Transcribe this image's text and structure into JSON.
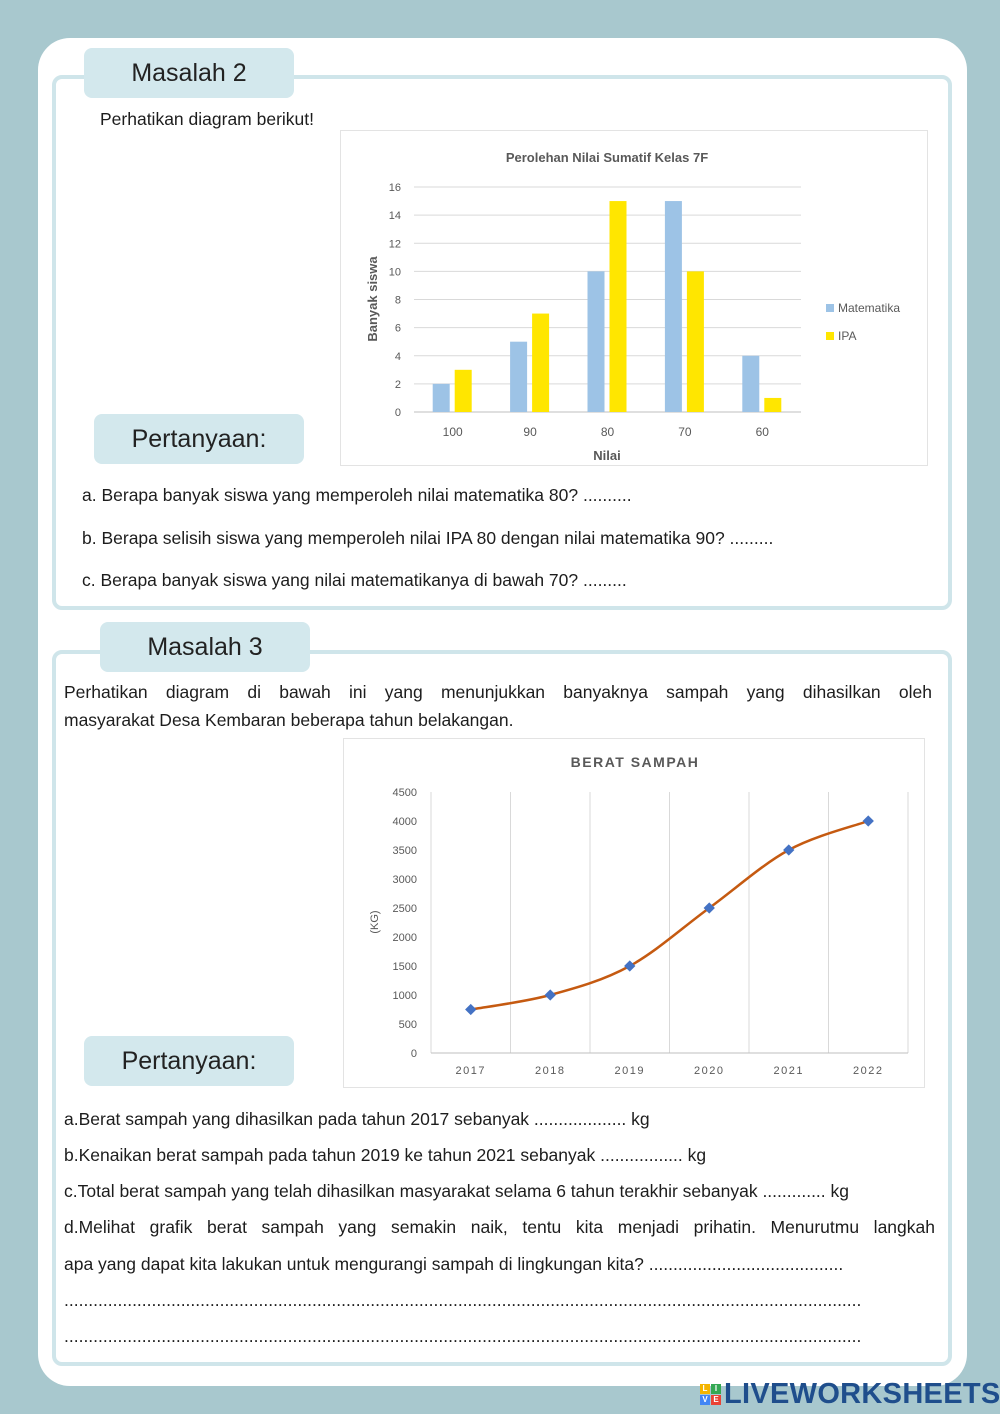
{
  "masalah2": {
    "title": "Masalah 2",
    "intro": "Perhatikan diagram berikut!",
    "pertanyaan_label": "Pertanyaan:",
    "questions": [
      "a. Berapa banyak siswa yang memperoleh nilai matematika 80? ..........",
      "b. Berapa selisih siswa yang memperoleh nilai IPA 80 dengan nilai matematika 90? .........",
      "c. Berapa banyak siswa yang nilai matematikanya di bawah 70? ........."
    ]
  },
  "masalah3": {
    "title": "Masalah 3",
    "intro_line1": "Perhatikan diagram di bawah ini yang menunjukkan banyaknya sampah yang dihasilkan oleh",
    "intro_line2": "masyarakat Desa Kembaran beberapa tahun belakangan.",
    "pertanyaan_label": "Pertanyaan:",
    "questions": [
      "a.Berat sampah yang dihasilkan pada tahun 2017 sebanyak ................... kg",
      "b.Kenaikan berat sampah pada tahun 2019 ke tahun 2021 sebanyak  ................. kg",
      "c.Total berat sampah yang telah dihasilkan masyarakat selama 6 tahun terakhir sebanyak ............. kg",
      "d.Melihat grafik berat sampah yang semakin naik, tentu kita menjadi prihatin. Menurutmu langkah",
      "apa yang dapat kita lakukan untuk mengurangi sampah di lingkungan kita? ........................................",
      "....................................................................................................................................................................",
      "...................................................................................................................................................................."
    ]
  },
  "chart_data": [
    {
      "type": "bar",
      "title": "Perolehan Nilai Sumatif Kelas 7F",
      "xlabel": "Nilai",
      "ylabel": "Banyak siswa",
      "categories": [
        "100",
        "90",
        "80",
        "70",
        "60"
      ],
      "series": [
        {
          "name": "Matematika",
          "values": [
            2,
            5,
            10,
            15,
            4
          ],
          "color": "#9dc3e6"
        },
        {
          "name": "IPA",
          "values": [
            3,
            7,
            15,
            10,
            1
          ],
          "color": "#ffe600"
        }
      ],
      "ylim": [
        0,
        16
      ],
      "yticks": [
        "0",
        "2",
        "4",
        "6",
        "8",
        "10",
        "12",
        "14",
        "16"
      ],
      "grid": "horizontal",
      "legend": "right"
    },
    {
      "type": "line",
      "title": "BERAT SAMPAH",
      "xlabel": "",
      "ylabel": "(KG)",
      "categories": [
        "2017",
        "2018",
        "2019",
        "2020",
        "2021",
        "2022"
      ],
      "values": [
        750,
        1000,
        1500,
        2500,
        3500,
        4000
      ],
      "line_color": "#c55a11",
      "marker_color": "#4472c4",
      "ylim": [
        0,
        4500
      ],
      "yticks": [
        "0",
        "500",
        "1000",
        "1500",
        "2000",
        "2500",
        "3000",
        "3500",
        "4000",
        "4500"
      ],
      "grid": "vertical",
      "smooth": true
    }
  ],
  "logo": {
    "text": "LIVEWORKSHEETS",
    "letters": [
      "L",
      "I",
      "V",
      "E"
    ]
  }
}
